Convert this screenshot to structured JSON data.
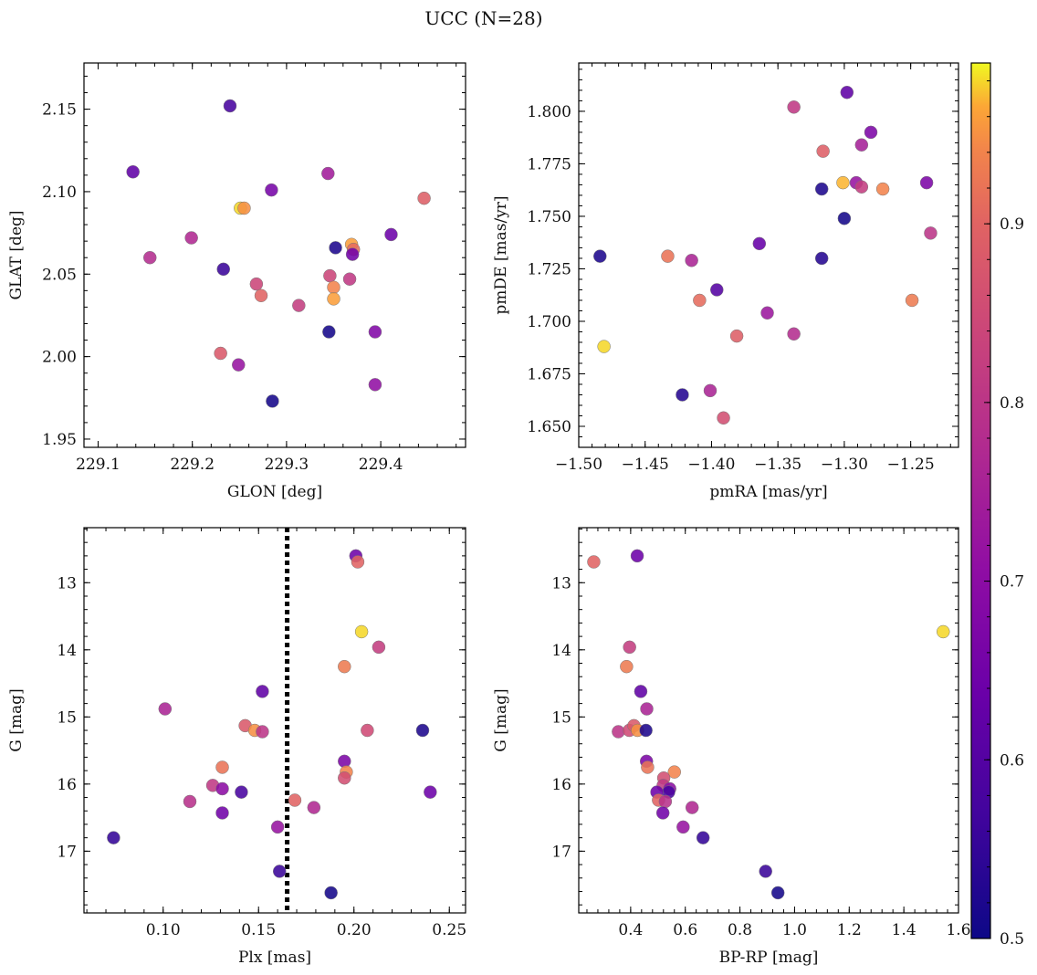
{
  "suptitle": "UCC (N=28)",
  "colorbar": {
    "range": [
      0.5,
      0.99
    ],
    "ticks": [
      0.5,
      0.6,
      0.7,
      0.8,
      0.9
    ],
    "tick_labels": [
      "0.5",
      "0.6",
      "0.7",
      "0.8",
      "0.9"
    ],
    "colormap": "plasma"
  },
  "chart_data": [
    {
      "type": "scatter",
      "xlabel": "GLON [deg]",
      "ylabel": "GLAT [deg]",
      "xlim": [
        229.085,
        229.49
      ],
      "ylim": [
        1.945,
        2.178
      ],
      "xticks": [
        229.1,
        229.2,
        229.3,
        229.4
      ],
      "xtick_labels": [
        "229.1",
        "229.2",
        "229.3",
        "229.4"
      ],
      "yticks": [
        1.95,
        2.0,
        2.05,
        2.1,
        2.15
      ],
      "ytick_labels": [
        "1.95",
        "2.00",
        "2.05",
        "2.10",
        "2.15"
      ],
      "y_inverted": false,
      "points": [
        {
          "x": 229.24,
          "y": 2.152,
          "c": 0.58
        },
        {
          "x": 229.137,
          "y": 2.112,
          "c": 0.62
        },
        {
          "x": 229.344,
          "y": 2.111,
          "c": 0.74
        },
        {
          "x": 229.284,
          "y": 2.101,
          "c": 0.66
        },
        {
          "x": 229.446,
          "y": 2.096,
          "c": 0.89
        },
        {
          "x": 229.251,
          "y": 2.09,
          "c": 0.98
        },
        {
          "x": 229.255,
          "y": 2.09,
          "c": 0.95
        },
        {
          "x": 229.199,
          "y": 2.072,
          "c": 0.77
        },
        {
          "x": 229.411,
          "y": 2.074,
          "c": 0.64
        },
        {
          "x": 229.369,
          "y": 2.068,
          "c": 0.96
        },
        {
          "x": 229.352,
          "y": 2.066,
          "c": 0.52
        },
        {
          "x": 229.371,
          "y": 2.065,
          "c": 0.91
        },
        {
          "x": 229.37,
          "y": 2.062,
          "c": 0.65
        },
        {
          "x": 229.155,
          "y": 2.06,
          "c": 0.78
        },
        {
          "x": 229.233,
          "y": 2.053,
          "c": 0.56
        },
        {
          "x": 229.346,
          "y": 2.049,
          "c": 0.84
        },
        {
          "x": 229.367,
          "y": 2.047,
          "c": 0.81
        },
        {
          "x": 229.268,
          "y": 2.044,
          "c": 0.84
        },
        {
          "x": 229.35,
          "y": 2.042,
          "c": 0.94
        },
        {
          "x": 229.273,
          "y": 2.037,
          "c": 0.9
        },
        {
          "x": 229.35,
          "y": 2.035,
          "c": 0.96
        },
        {
          "x": 229.313,
          "y": 2.031,
          "c": 0.82
        },
        {
          "x": 229.345,
          "y": 2.015,
          "c": 0.51
        },
        {
          "x": 229.394,
          "y": 2.015,
          "c": 0.68
        },
        {
          "x": 229.23,
          "y": 2.002,
          "c": 0.88
        },
        {
          "x": 229.249,
          "y": 1.995,
          "c": 0.72
        },
        {
          "x": 229.394,
          "y": 1.983,
          "c": 0.71
        },
        {
          "x": 229.285,
          "y": 1.973,
          "c": 0.51
        }
      ]
    },
    {
      "type": "scatter",
      "xlabel": "pmRA [mas/yr]",
      "ylabel": "pmDE [mas/yr]",
      "xlim": [
        -1.5,
        -1.214
      ],
      "ylim": [
        1.64,
        1.823
      ],
      "xticks": [
        -1.5,
        -1.45,
        -1.4,
        -1.35,
        -1.3,
        -1.25
      ],
      "xtick_labels": [
        "−1.50",
        "−1.45",
        "−1.40",
        "−1.35",
        "−1.30",
        "−1.25"
      ],
      "yticks": [
        1.65,
        1.675,
        1.7,
        1.725,
        1.75,
        1.775,
        1.8
      ],
      "ytick_labels": [
        "1.650",
        "1.675",
        "1.700",
        "1.725",
        "1.750",
        "1.775",
        "1.800"
      ],
      "y_inverted": false,
      "points": [
        {
          "x": -1.298,
          "y": 1.809,
          "c": 0.62
        },
        {
          "x": -1.338,
          "y": 1.802,
          "c": 0.81
        },
        {
          "x": -1.28,
          "y": 1.79,
          "c": 0.67
        },
        {
          "x": -1.287,
          "y": 1.784,
          "c": 0.75
        },
        {
          "x": -1.316,
          "y": 1.781,
          "c": 0.89
        },
        {
          "x": -1.301,
          "y": 1.766,
          "c": 0.97
        },
        {
          "x": -1.291,
          "y": 1.766,
          "c": 0.72
        },
        {
          "x": -1.238,
          "y": 1.766,
          "c": 0.67
        },
        {
          "x": -1.287,
          "y": 1.764,
          "c": 0.82
        },
        {
          "x": -1.271,
          "y": 1.763,
          "c": 0.94
        },
        {
          "x": -1.317,
          "y": 1.763,
          "c": 0.52
        },
        {
          "x": -1.3,
          "y": 1.749,
          "c": 0.51
        },
        {
          "x": -1.235,
          "y": 1.742,
          "c": 0.8
        },
        {
          "x": -1.364,
          "y": 1.737,
          "c": 0.63
        },
        {
          "x": -1.433,
          "y": 1.731,
          "c": 0.92
        },
        {
          "x": -1.484,
          "y": 1.731,
          "c": 0.52
        },
        {
          "x": -1.317,
          "y": 1.73,
          "c": 0.53
        },
        {
          "x": -1.415,
          "y": 1.729,
          "c": 0.76
        },
        {
          "x": -1.396,
          "y": 1.715,
          "c": 0.6
        },
        {
          "x": -1.249,
          "y": 1.71,
          "c": 0.93
        },
        {
          "x": -1.409,
          "y": 1.71,
          "c": 0.91
        },
        {
          "x": -1.358,
          "y": 1.704,
          "c": 0.73
        },
        {
          "x": -1.338,
          "y": 1.694,
          "c": 0.78
        },
        {
          "x": -1.381,
          "y": 1.693,
          "c": 0.89
        },
        {
          "x": -1.481,
          "y": 1.688,
          "c": 0.98
        },
        {
          "x": -1.401,
          "y": 1.667,
          "c": 0.76
        },
        {
          "x": -1.422,
          "y": 1.665,
          "c": 0.53
        },
        {
          "x": -1.391,
          "y": 1.654,
          "c": 0.86
        }
      ]
    },
    {
      "type": "scatter",
      "xlabel": "Plx [mas]",
      "ylabel": "G [mag]",
      "xlim": [
        0.0585,
        0.2585
      ],
      "ylim": [
        12.18,
        17.92
      ],
      "xticks": [
        0.1,
        0.15,
        0.2,
        0.25
      ],
      "xtick_labels": [
        "0.10",
        "0.15",
        "0.20",
        "0.25"
      ],
      "yticks": [
        13,
        14,
        15,
        16,
        17
      ],
      "ytick_labels": [
        "13",
        "14",
        "15",
        "16",
        "17"
      ],
      "y_inverted": true,
      "vline": 0.165,
      "points": [
        {
          "x": 0.201,
          "y": 12.6,
          "c": 0.64
        },
        {
          "x": 0.202,
          "y": 12.69,
          "c": 0.9
        },
        {
          "x": 0.204,
          "y": 13.73,
          "c": 0.98
        },
        {
          "x": 0.213,
          "y": 13.96,
          "c": 0.82
        },
        {
          "x": 0.195,
          "y": 14.25,
          "c": 0.93
        },
        {
          "x": 0.152,
          "y": 14.62,
          "c": 0.62
        },
        {
          "x": 0.101,
          "y": 14.88,
          "c": 0.76
        },
        {
          "x": 0.143,
          "y": 15.13,
          "c": 0.88
        },
        {
          "x": 0.148,
          "y": 15.2,
          "c": 0.95
        },
        {
          "x": 0.152,
          "y": 15.22,
          "c": 0.8
        },
        {
          "x": 0.207,
          "y": 15.2,
          "c": 0.85
        },
        {
          "x": 0.236,
          "y": 15.2,
          "c": 0.52
        },
        {
          "x": 0.195,
          "y": 15.66,
          "c": 0.67
        },
        {
          "x": 0.131,
          "y": 15.75,
          "c": 0.92
        },
        {
          "x": 0.196,
          "y": 15.82,
          "c": 0.94
        },
        {
          "x": 0.195,
          "y": 15.91,
          "c": 0.86
        },
        {
          "x": 0.126,
          "y": 16.02,
          "c": 0.81
        },
        {
          "x": 0.131,
          "y": 16.07,
          "c": 0.7
        },
        {
          "x": 0.141,
          "y": 16.12,
          "c": 0.58
        },
        {
          "x": 0.24,
          "y": 16.12,
          "c": 0.64
        },
        {
          "x": 0.169,
          "y": 16.24,
          "c": 0.9
        },
        {
          "x": 0.114,
          "y": 16.26,
          "c": 0.79
        },
        {
          "x": 0.179,
          "y": 16.35,
          "c": 0.77
        },
        {
          "x": 0.131,
          "y": 16.43,
          "c": 0.65
        },
        {
          "x": 0.16,
          "y": 16.64,
          "c": 0.72
        },
        {
          "x": 0.074,
          "y": 16.8,
          "c": 0.55
        },
        {
          "x": 0.161,
          "y": 17.3,
          "c": 0.56
        },
        {
          "x": 0.188,
          "y": 17.62,
          "c": 0.51
        }
      ]
    },
    {
      "type": "scatter",
      "xlabel": "BP-RP [mag]",
      "ylabel": "G [mag]",
      "xlim": [
        0.21,
        1.6
      ],
      "ylim": [
        12.18,
        17.92
      ],
      "xticks": [
        0.4,
        0.6,
        0.8,
        1.0,
        1.2,
        1.4,
        1.6
      ],
      "xtick_labels": [
        "0.4",
        "0.6",
        "0.8",
        "1.0",
        "1.2",
        "1.4",
        "1.6"
      ],
      "yticks": [
        13,
        14,
        15,
        16,
        17
      ],
      "ytick_labels": [
        "13",
        "14",
        "15",
        "16",
        "17"
      ],
      "y_inverted": true,
      "points": [
        {
          "x": 0.265,
          "y": 12.69,
          "c": 0.9
        },
        {
          "x": 0.424,
          "y": 12.6,
          "c": 0.64
        },
        {
          "x": 1.544,
          "y": 13.73,
          "c": 0.98
        },
        {
          "x": 0.396,
          "y": 13.96,
          "c": 0.82
        },
        {
          "x": 0.385,
          "y": 14.25,
          "c": 0.93
        },
        {
          "x": 0.437,
          "y": 14.62,
          "c": 0.62
        },
        {
          "x": 0.459,
          "y": 14.88,
          "c": 0.76
        },
        {
          "x": 0.355,
          "y": 15.22,
          "c": 0.8
        },
        {
          "x": 0.395,
          "y": 15.2,
          "c": 0.85
        },
        {
          "x": 0.412,
          "y": 15.13,
          "c": 0.88
        },
        {
          "x": 0.425,
          "y": 15.2,
          "c": 0.95
        },
        {
          "x": 0.456,
          "y": 15.2,
          "c": 0.52
        },
        {
          "x": 0.458,
          "y": 15.66,
          "c": 0.67
        },
        {
          "x": 0.462,
          "y": 15.75,
          "c": 0.92
        },
        {
          "x": 0.56,
          "y": 15.82,
          "c": 0.94
        },
        {
          "x": 0.521,
          "y": 15.91,
          "c": 0.86
        },
        {
          "x": 0.519,
          "y": 16.02,
          "c": 0.81
        },
        {
          "x": 0.543,
          "y": 16.07,
          "c": 0.7
        },
        {
          "x": 0.539,
          "y": 16.12,
          "c": 0.58
        },
        {
          "x": 0.496,
          "y": 16.12,
          "c": 0.64
        },
        {
          "x": 0.502,
          "y": 16.24,
          "c": 0.9
        },
        {
          "x": 0.527,
          "y": 16.26,
          "c": 0.79
        },
        {
          "x": 0.625,
          "y": 16.35,
          "c": 0.77
        },
        {
          "x": 0.518,
          "y": 16.43,
          "c": 0.65
        },
        {
          "x": 0.592,
          "y": 16.64,
          "c": 0.72
        },
        {
          "x": 0.665,
          "y": 16.8,
          "c": 0.55
        },
        {
          "x": 0.894,
          "y": 17.3,
          "c": 0.56
        },
        {
          "x": 0.939,
          "y": 17.62,
          "c": 0.51
        }
      ]
    }
  ]
}
